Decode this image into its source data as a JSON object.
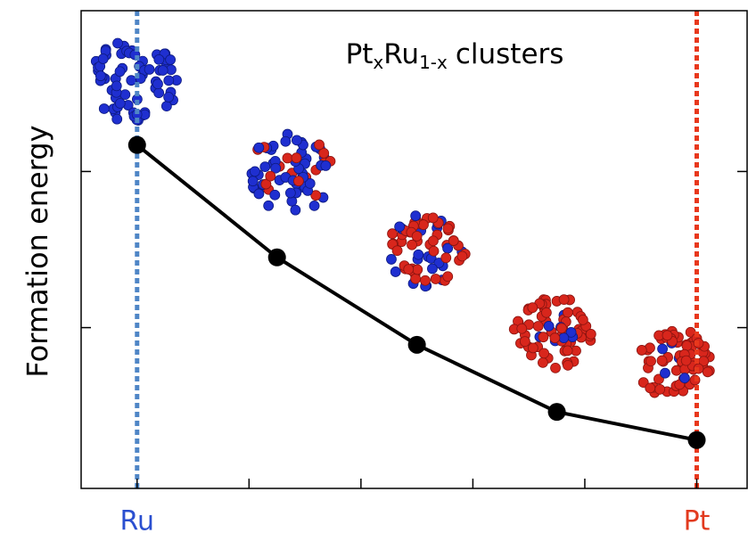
{
  "chart_data": {
    "type": "line",
    "title": [
      "Pt",
      "x",
      "Ru",
      "1-x",
      "clusters"
    ],
    "title_subscripts": [
      false,
      true,
      false,
      true,
      false
    ],
    "ylabel": "Formation energy",
    "x": [
      0,
      0.25,
      0.5,
      0.75,
      1
    ],
    "series": [
      {
        "color": "#000000",
        "values": [
          2.17,
          1.45,
          0.89,
          0.46,
          0.28
        ]
      }
    ],
    "xlim": [
      -0.1,
      1.09
    ],
    "ylim": [
      -0.03,
      3.03
    ],
    "xticks": [
      {
        "value": 0,
        "label": "Ru",
        "color": "#2a4fd0"
      },
      {
        "value": 0.2,
        "label": null
      },
      {
        "value": 0.4,
        "label": null
      },
      {
        "value": 0.6,
        "label": null
      },
      {
        "value": 0.8,
        "label": null
      },
      {
        "value": 1,
        "label": "Pt",
        "color": "#e23a1e"
      }
    ],
    "yticks": [
      {
        "value": 1,
        "label": null
      },
      {
        "value": 2,
        "label": null
      }
    ],
    "reference_lines": [
      {
        "x": 0,
        "color": "#4f86c6"
      },
      {
        "x": 1,
        "color": "#e8381c"
      }
    ]
  }
}
